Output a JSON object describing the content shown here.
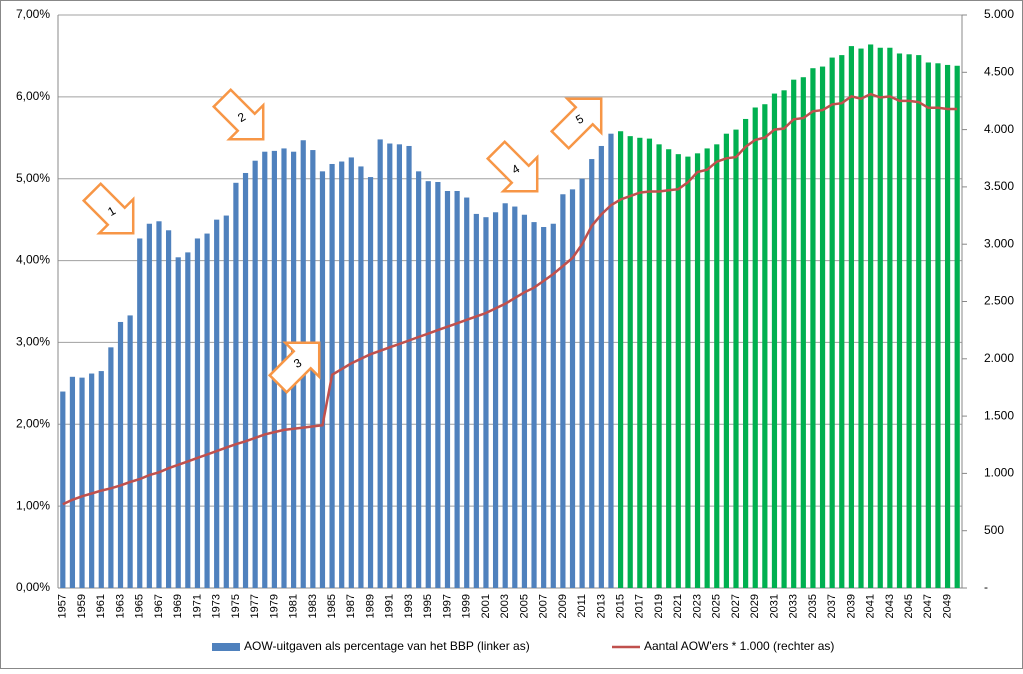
{
  "chart_data": {
    "type": "bar_line",
    "categories": [
      "1957",
      null,
      "1959",
      null,
      "1961",
      null,
      "1963",
      null,
      "1965",
      null,
      "1967",
      null,
      "1969",
      null,
      "1971",
      null,
      "1973",
      null,
      "1975",
      null,
      "1977",
      null,
      "1979",
      null,
      "1981",
      null,
      "1983",
      null,
      "1985",
      null,
      "1987",
      null,
      "1989",
      null,
      "1991",
      null,
      "1993",
      null,
      "1995",
      null,
      "1997",
      null,
      "1999",
      null,
      "2001",
      null,
      "2003",
      null,
      "2005",
      null,
      "2007",
      null,
      "2009",
      null,
      "2011",
      null,
      "2013",
      null,
      "2015",
      null,
      "2017",
      null,
      "2019",
      null,
      "2021",
      null,
      "2023",
      null,
      "2025",
      null,
      "2027",
      null,
      "2029",
      null,
      "2031",
      null,
      "2033",
      null,
      "2035",
      null,
      "2037",
      null,
      "2039",
      null,
      "2041",
      null,
      "2043",
      null,
      "2045",
      null,
      "2047",
      null,
      "2049",
      null
    ],
    "series": [
      {
        "name": "AOW-uitgaven als percentage van het BBP (linker as)",
        "kind": "bar",
        "color": "#4f81bd",
        "values": [
          2.4,
          2.58,
          2.57,
          2.62,
          2.65,
          2.94,
          3.25,
          3.33,
          4.27,
          4.45,
          4.48,
          4.37,
          4.04,
          4.1,
          4.27,
          4.33,
          4.5,
          4.55,
          4.95,
          5.07,
          5.22,
          5.33,
          5.34,
          5.37,
          5.33,
          5.47,
          5.35,
          5.09,
          5.18,
          5.21,
          5.26,
          5.15,
          5.02,
          5.48,
          5.43,
          5.42,
          5.4,
          5.09,
          4.97,
          4.96,
          4.85,
          4.85,
          4.77,
          4.57,
          4.53,
          4.59,
          4.7,
          4.66,
          4.56,
          4.47,
          4.41,
          4.45,
          4.81,
          4.87,
          5.0,
          5.24,
          5.4,
          5.55,
          5.58,
          5.52,
          5.5,
          5.49,
          5.42,
          5.36,
          5.3,
          5.27,
          5.31,
          5.37,
          5.42,
          5.55,
          5.6,
          5.73,
          5.87,
          5.91,
          6.04,
          6.08,
          6.21,
          6.24,
          6.35,
          6.37,
          6.48,
          6.51,
          6.62,
          6.59,
          6.64,
          6.6,
          6.6,
          6.53,
          6.52,
          6.51,
          6.42,
          6.41,
          6.39,
          6.38
        ],
        "colors": [
          "#4f81bd",
          "#4f81bd",
          "#4f81bd",
          "#4f81bd",
          "#4f81bd",
          "#4f81bd",
          "#4f81bd",
          "#4f81bd",
          "#4f81bd",
          "#4f81bd",
          "#4f81bd",
          "#4f81bd",
          "#4f81bd",
          "#4f81bd",
          "#4f81bd",
          "#4f81bd",
          "#4f81bd",
          "#4f81bd",
          "#4f81bd",
          "#4f81bd",
          "#4f81bd",
          "#4f81bd",
          "#4f81bd",
          "#4f81bd",
          "#4f81bd",
          "#4f81bd",
          "#4f81bd",
          "#4f81bd",
          "#4f81bd",
          "#4f81bd",
          "#4f81bd",
          "#4f81bd",
          "#4f81bd",
          "#4f81bd",
          "#4f81bd",
          "#4f81bd",
          "#4f81bd",
          "#4f81bd",
          "#4f81bd",
          "#4f81bd",
          "#4f81bd",
          "#4f81bd",
          "#4f81bd",
          "#4f81bd",
          "#4f81bd",
          "#4f81bd",
          "#4f81bd",
          "#4f81bd",
          "#4f81bd",
          "#4f81bd",
          "#4f81bd",
          "#4f81bd",
          "#4f81bd",
          "#4f81bd",
          "#4f81bd",
          "#4f81bd",
          "#4f81bd",
          "#4f81bd",
          "#00b050",
          "#00b050",
          "#00b050",
          "#00b050",
          "#00b050",
          "#00b050",
          "#00b050",
          "#00b050",
          "#00b050",
          "#00b050",
          "#00b050",
          "#00b050",
          "#00b050",
          "#00b050",
          "#00b050",
          "#00b050",
          "#00b050",
          "#00b050",
          "#00b050",
          "#00b050",
          "#00b050",
          "#00b050",
          "#00b050",
          "#00b050",
          "#00b050",
          "#00b050",
          "#00b050",
          "#00b050",
          "#00b050",
          "#00b050",
          "#00b050",
          "#00b050",
          "#00b050",
          "#00b050",
          "#00b050",
          "#00b050"
        ]
      },
      {
        "name": "Aantal AOW'ers * 1.000 (rechter as)",
        "kind": "line",
        "axis": "y2",
        "color": "#c0504d",
        "values": [
          730,
          770,
          800,
          825,
          850,
          870,
          895,
          925,
          950,
          985,
          1010,
          1045,
          1075,
          1105,
          1135,
          1165,
          1195,
          1225,
          1255,
          1280,
          1310,
          1340,
          1360,
          1380,
          1390,
          1400,
          1410,
          1420,
          1860,
          1910,
          1960,
          2000,
          2040,
          2070,
          2100,
          2130,
          2160,
          2190,
          2220,
          2250,
          2280,
          2310,
          2340,
          2370,
          2400,
          2440,
          2480,
          2530,
          2580,
          2620,
          2680,
          2740,
          2810,
          2880,
          3000,
          3160,
          3260,
          3340,
          3390,
          3420,
          3450,
          3460,
          3460,
          3470,
          3480,
          3540,
          3630,
          3650,
          3720,
          3750,
          3760,
          3850,
          3910,
          3930,
          4000,
          4010,
          4090,
          4100,
          4160,
          4170,
          4220,
          4230,
          4290,
          4270,
          4310,
          4280,
          4290,
          4250,
          4250,
          4240,
          4190,
          4190,
          4180,
          4180
        ]
      }
    ],
    "ylim": [
      0,
      7
    ],
    "yticks": [
      {
        "value": 0,
        "label": "0,00%"
      },
      {
        "value": 1,
        "label": "1,00%"
      },
      {
        "value": 2,
        "label": "2,00%"
      },
      {
        "value": 3,
        "label": "3,00%"
      },
      {
        "value": 4,
        "label": "4,00%"
      },
      {
        "value": 5,
        "label": "5,00%"
      },
      {
        "value": 6,
        "label": "6,00%"
      },
      {
        "value": 7,
        "label": "7,00%"
      }
    ],
    "y2lim": [
      0,
      5000
    ],
    "y2ticks": [
      {
        "value": 0,
        "label": "-"
      },
      500,
      {
        "value": 1000,
        "label": "1.000"
      },
      {
        "value": 1500,
        "label": "1.500"
      },
      {
        "value": 2000,
        "label": "2.000"
      },
      {
        "value": 2500,
        "label": "2.500"
      },
      {
        "value": 3000,
        "label": "3.000"
      },
      {
        "value": 3500,
        "label": "3.500"
      },
      {
        "value": 4000,
        "label": "4.000"
      },
      {
        "value": 4500,
        "label": "4.500"
      },
      {
        "value": 5000,
        "label": "5.000"
      }
    ],
    "grid": true,
    "legend": "bottom",
    "annotations": [
      "1",
      "2",
      "3",
      "4",
      "5"
    ]
  }
}
